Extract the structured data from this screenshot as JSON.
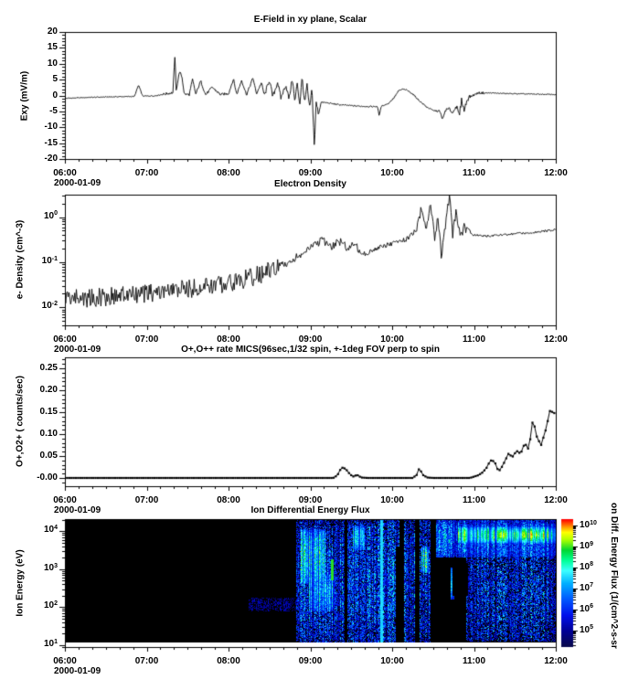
{
  "figure": {
    "background": "#ffffff",
    "ink": "#000000"
  },
  "xaxis": {
    "ticks": [
      "06:00",
      "07:00",
      "08:00",
      "09:00",
      "10:00",
      "11:00",
      "12:00"
    ],
    "tick_hours": [
      6,
      7,
      8,
      9,
      10,
      11,
      12
    ],
    "minor_per_hour": 6,
    "range_hours": [
      6,
      12
    ],
    "date": "2000-01-09"
  },
  "chart_data": [
    {
      "id": "efield",
      "type": "line",
      "title": "E-Field in xy plane, Scalar",
      "ylabel": "Exy (mV/m)",
      "ylim": [
        -20,
        20
      ],
      "yticks": [
        "20",
        "15",
        "10",
        "5",
        "0",
        "-5",
        "-10",
        "-15",
        "-20"
      ],
      "ytick_vals": [
        20,
        15,
        10,
        5,
        0,
        -5,
        -10,
        -15,
        -20
      ],
      "ytick_minor_step": 1,
      "date": "2000-01-09",
      "keypoints": [
        [
          6.0,
          -0.9
        ],
        [
          6.3,
          -0.6
        ],
        [
          6.6,
          -0.4
        ],
        [
          6.85,
          -0.3
        ],
        [
          6.9,
          3.3
        ],
        [
          6.95,
          -0.2
        ],
        [
          7.1,
          -0.1
        ],
        [
          7.25,
          0.6
        ],
        [
          7.32,
          0.9
        ],
        [
          7.345,
          12.8
        ],
        [
          7.36,
          1.5
        ],
        [
          7.4,
          7.5
        ],
        [
          7.43,
          6.0
        ],
        [
          7.46,
          0.4
        ],
        [
          7.52,
          0.3
        ],
        [
          7.56,
          5.0
        ],
        [
          7.6,
          0.4
        ],
        [
          7.66,
          4.6
        ],
        [
          7.72,
          0.2
        ],
        [
          7.8,
          2.6
        ],
        [
          7.9,
          0.3
        ],
        [
          8.0,
          0.6
        ],
        [
          8.06,
          5.2
        ],
        [
          8.1,
          0.3
        ],
        [
          8.16,
          4.8
        ],
        [
          8.22,
          0.2
        ],
        [
          8.3,
          5.6
        ],
        [
          8.34,
          0.5
        ],
        [
          8.4,
          3.9
        ],
        [
          8.44,
          0.0
        ],
        [
          8.5,
          5.0
        ],
        [
          8.54,
          -0.5
        ],
        [
          8.6,
          4.2
        ],
        [
          8.64,
          -0.8
        ],
        [
          8.7,
          3.4
        ],
        [
          8.74,
          -1.2
        ],
        [
          8.78,
          5.6
        ],
        [
          8.81,
          -2.2
        ],
        [
          8.84,
          4.1
        ],
        [
          8.87,
          -3.0
        ],
        [
          8.9,
          5.9
        ],
        [
          8.93,
          -2.6
        ],
        [
          8.96,
          3.2
        ],
        [
          8.99,
          -4.2
        ],
        [
          9.02,
          2.2
        ],
        [
          9.05,
          -16.5
        ],
        [
          9.07,
          -2.0
        ],
        [
          9.1,
          -5.8
        ],
        [
          9.13,
          -2.1
        ],
        [
          9.2,
          -2.3
        ],
        [
          9.35,
          -2.9
        ],
        [
          9.55,
          -3.3
        ],
        [
          9.75,
          -3.5
        ],
        [
          9.82,
          -3.4
        ],
        [
          9.84,
          -6.3
        ],
        [
          9.87,
          -3.3
        ],
        [
          9.95,
          -2.6
        ],
        [
          10.02,
          -0.8
        ],
        [
          10.08,
          1.5
        ],
        [
          10.13,
          2.0
        ],
        [
          10.18,
          1.7
        ],
        [
          10.25,
          0.5
        ],
        [
          10.33,
          -1.6
        ],
        [
          10.42,
          -3.6
        ],
        [
          10.5,
          -4.7
        ],
        [
          10.58,
          -5.0
        ],
        [
          10.62,
          -7.6
        ],
        [
          10.65,
          -4.6
        ],
        [
          10.7,
          -4.2
        ],
        [
          10.74,
          -5.6
        ],
        [
          10.78,
          -3.2
        ],
        [
          10.82,
          -6.4
        ],
        [
          10.85,
          -1.2
        ],
        [
          10.88,
          -4.8
        ],
        [
          10.92,
          -0.9
        ],
        [
          10.97,
          -0.2
        ],
        [
          11.05,
          0.8
        ],
        [
          11.2,
          0.8
        ],
        [
          11.4,
          0.6
        ],
        [
          11.7,
          0.45
        ],
        [
          12.0,
          0.3
        ]
      ],
      "noise": [
        [
          6.0,
          7.2,
          0.3
        ],
        [
          7.2,
          8.4,
          0.8
        ],
        [
          8.4,
          9.12,
          1.5
        ],
        [
          9.12,
          9.8,
          0.45
        ],
        [
          9.8,
          10.25,
          0.35
        ],
        [
          10.25,
          10.55,
          0.4
        ],
        [
          10.55,
          10.78,
          0.9
        ],
        [
          10.78,
          10.95,
          1.8
        ],
        [
          10.95,
          11.15,
          0.7
        ],
        [
          11.15,
          12.0,
          0.3
        ]
      ]
    },
    {
      "id": "edensity",
      "type": "line-log",
      "title": "Electron Density",
      "ylabel": "e- Density (cm^-3)",
      "ylim_exp": [
        -2.4,
        0.5
      ],
      "yticks": [
        "10^0",
        "10^-1",
        "10^-2"
      ],
      "ytick_exps": [
        0,
        -1,
        -2
      ],
      "date": "2000-01-09",
      "keypoints": [
        [
          6.0,
          0.017
        ],
        [
          6.3,
          0.016
        ],
        [
          6.6,
          0.018
        ],
        [
          6.9,
          0.019
        ],
        [
          7.2,
          0.022
        ],
        [
          7.5,
          0.026
        ],
        [
          7.8,
          0.03
        ],
        [
          8.0,
          0.036
        ],
        [
          8.2,
          0.042
        ],
        [
          8.4,
          0.055
        ],
        [
          8.6,
          0.075
        ],
        [
          8.8,
          0.12
        ],
        [
          8.95,
          0.17
        ],
        [
          9.05,
          0.25
        ],
        [
          9.15,
          0.3
        ],
        [
          9.25,
          0.22
        ],
        [
          9.35,
          0.3
        ],
        [
          9.45,
          0.21
        ],
        [
          9.55,
          0.26
        ],
        [
          9.62,
          0.15
        ],
        [
          9.7,
          0.16
        ],
        [
          9.8,
          0.2
        ],
        [
          9.9,
          0.23
        ],
        [
          10.0,
          0.26
        ],
        [
          10.1,
          0.29
        ],
        [
          10.2,
          0.34
        ],
        [
          10.3,
          0.55
        ],
        [
          10.36,
          1.6
        ],
        [
          10.42,
          0.5
        ],
        [
          10.47,
          2.3
        ],
        [
          10.52,
          0.28
        ],
        [
          10.56,
          1.0
        ],
        [
          10.6,
          0.14
        ],
        [
          10.65,
          0.6
        ],
        [
          10.7,
          3.2
        ],
        [
          10.74,
          0.4
        ],
        [
          10.78,
          1.3
        ],
        [
          10.83,
          0.4
        ],
        [
          10.88,
          0.6
        ],
        [
          10.95,
          0.42
        ],
        [
          11.1,
          0.38
        ],
        [
          11.3,
          0.4
        ],
        [
          11.6,
          0.44
        ],
        [
          11.8,
          0.48
        ],
        [
          12.0,
          0.52
        ]
      ],
      "lognoise": [
        [
          6.0,
          8.6,
          0.42
        ],
        [
          8.6,
          9.6,
          0.18
        ],
        [
          9.6,
          10.25,
          0.1
        ],
        [
          10.25,
          10.95,
          0.22
        ],
        [
          10.95,
          12.0,
          0.05
        ]
      ]
    },
    {
      "id": "orate",
      "type": "line-markers",
      "title": "O+,O++ rate MICS(96sec,1/32 spin, +-1deg FOV perp to spin",
      "ylabel": "O+,O2+ ( counts/sec)",
      "ylim": [
        -0.019,
        0.275
      ],
      "yticks": [
        "0.25",
        "0.20",
        "0.15",
        "0.10",
        "0.05",
        "-0.00"
      ],
      "ytick_vals": [
        0.25,
        0.2,
        0.15,
        0.1,
        0.05,
        0
      ],
      "ytick_minor_step": 0.01,
      "marker_dt": 0.0267,
      "date": "2000-01-09",
      "keypoints": [
        [
          6.0,
          0.0
        ],
        [
          9.28,
          0.0
        ],
        [
          9.33,
          0.006
        ],
        [
          9.38,
          0.024
        ],
        [
          9.43,
          0.021
        ],
        [
          9.48,
          0.009
        ],
        [
          9.52,
          0.003
        ],
        [
          9.57,
          0.007
        ],
        [
          9.62,
          0.001
        ],
        [
          9.7,
          0.0
        ],
        [
          10.25,
          0.0
        ],
        [
          10.3,
          0.007
        ],
        [
          10.33,
          0.022
        ],
        [
          10.38,
          0.006
        ],
        [
          10.43,
          0.001
        ],
        [
          10.5,
          0.0
        ],
        [
          10.95,
          0.0
        ],
        [
          11.0,
          0.003
        ],
        [
          11.05,
          0.006
        ],
        [
          11.1,
          0.012
        ],
        [
          11.15,
          0.022
        ],
        [
          11.2,
          0.04
        ],
        [
          11.25,
          0.038
        ],
        [
          11.3,
          0.014
        ],
        [
          11.35,
          0.028
        ],
        [
          11.42,
          0.055
        ],
        [
          11.47,
          0.048
        ],
        [
          11.52,
          0.062
        ],
        [
          11.57,
          0.055
        ],
        [
          11.62,
          0.08
        ],
        [
          11.67,
          0.064
        ],
        [
          11.72,
          0.135
        ],
        [
          11.77,
          0.092
        ],
        [
          11.82,
          0.075
        ],
        [
          11.88,
          0.112
        ],
        [
          11.93,
          0.155
        ],
        [
          11.97,
          0.148
        ]
      ]
    },
    {
      "id": "ionflux",
      "type": "heatmap",
      "title": "Ion Differential Energy Flux",
      "ylabel": "Ion Energy (eV)",
      "ylim_exp": [
        0.95,
        4.32
      ],
      "yticks": [
        "10^1",
        "10^2",
        "10^3",
        "10^4"
      ],
      "ytick_exps": [
        1,
        2,
        3,
        4
      ],
      "date": "2000-01-09",
      "features": [
        {
          "t": [
            8.25,
            8.83
          ],
          "e": [
            1.9,
            2.25
          ],
          "v": 0.1,
          "n": 0.22
        },
        {
          "t": [
            8.83,
            9.42
          ],
          "e": [
            1.0,
            4.32
          ],
          "v": 0.26,
          "n": 0.5
        },
        {
          "t": [
            8.88,
            9.18
          ],
          "e": [
            2.6,
            4.05
          ],
          "v": 0.5,
          "n": 0.28
        },
        {
          "t": [
            8.98,
            9.3
          ],
          "e": [
            1.9,
            2.9
          ],
          "v": 0.4,
          "n": 0.3
        },
        {
          "t": [
            9.255,
            9.285
          ],
          "e": [
            2.7,
            3.25
          ],
          "v": 0.78,
          "n": 0.02,
          "solid": true
        },
        {
          "t": [
            9.45,
            10.09
          ],
          "e": [
            1.0,
            4.32
          ],
          "v": 0.26,
          "n": 0.5
        },
        {
          "t": [
            9.52,
            9.66
          ],
          "e": [
            3.5,
            4.15
          ],
          "v": 0.48,
          "n": 0.25
        },
        {
          "t": [
            9.86,
            9.885
          ],
          "e": [
            1.0,
            4.32
          ],
          "v": 0.55,
          "n": 0.05,
          "solid": true
        },
        {
          "t": [
            10.15,
            10.28
          ],
          "e": [
            1.0,
            4.32
          ],
          "v": 0.24,
          "n": 0.5
        },
        {
          "t": [
            10.33,
            10.47
          ],
          "e": [
            1.0,
            4.32
          ],
          "v": 0.2,
          "n": 0.5
        },
        {
          "t": [
            10.36,
            10.45
          ],
          "e": [
            2.9,
            3.6
          ],
          "v": 0.55,
          "n": 0.3
        },
        {
          "t": [
            10.54,
            12.0
          ],
          "e": [
            3.3,
            4.32
          ],
          "v": 0.34,
          "n": 0.35
        },
        {
          "t": [
            10.72,
            10.76
          ],
          "e": [
            2.2,
            3.05
          ],
          "v": 0.42,
          "n": 0.15
        },
        {
          "t": [
            10.8,
            12.0
          ],
          "e": [
            3.68,
            4.12
          ],
          "v": 0.6,
          "n": 0.12
        },
        {
          "t": [
            10.9,
            12.0
          ],
          "e": [
            1.1,
            3.55
          ],
          "v": 0.22,
          "n": 0.55
        },
        {
          "t": [
            11.3,
            11.95
          ],
          "e": [
            3.75,
            4.05
          ],
          "v": 0.66,
          "n": 0.08
        }
      ],
      "dark_regions": [
        {
          "t": [
            10.74,
            10.93
          ],
          "e": [
            2.3,
            3.15
          ]
        },
        {
          "t": [
            10.05,
            10.14
          ],
          "e": [
            1.0,
            3.6
          ]
        }
      ],
      "colorbar": {
        "label": "on Diff. Energy Flux (1/(cm^2-s-sr",
        "ticks": [
          "10^10",
          "10^9",
          "10^8",
          "10^7",
          "10^6",
          "10^5"
        ],
        "tick_exps": [
          10,
          9,
          8,
          7,
          6,
          5
        ],
        "exp_range": [
          4.2,
          10.3
        ]
      }
    }
  ]
}
